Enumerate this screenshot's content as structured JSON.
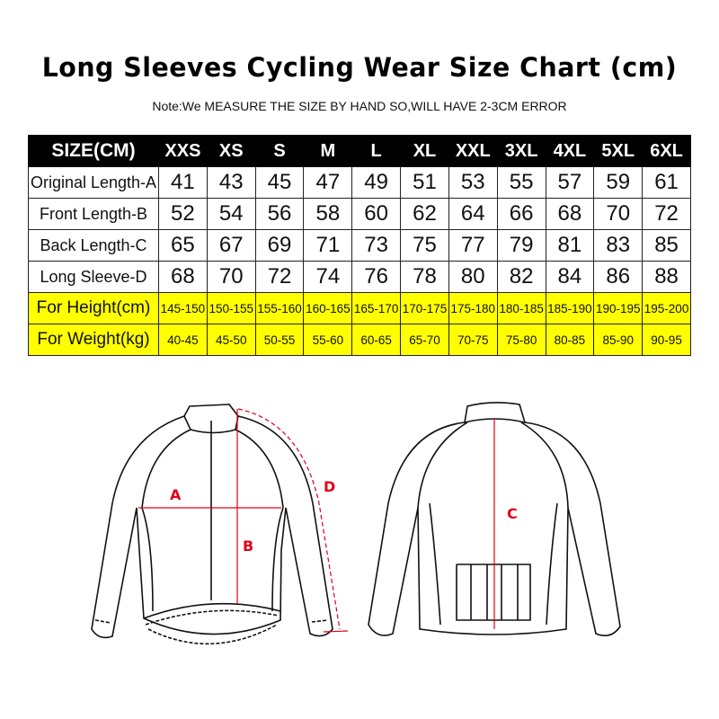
{
  "title": "Long Sleeves Cycling Wear Size Chart (cm)",
  "note": "Note:We MEASURE THE SIZE BY HAND SO,WILL HAVE 2-3CM ERROR",
  "table": {
    "header": [
      "SIZE(CM)",
      "XXS",
      "XS",
      "S",
      "M",
      "L",
      "XL",
      "XXL",
      "3XL",
      "4XL",
      "5XL",
      "6XL"
    ],
    "rows": [
      {
        "label": "Original Length-A",
        "values": [
          "41",
          "43",
          "45",
          "47",
          "49",
          "51",
          "53",
          "55",
          "57",
          "59",
          "61"
        ]
      },
      {
        "label": "Front Length-B",
        "values": [
          "52",
          "54",
          "56",
          "58",
          "60",
          "62",
          "64",
          "66",
          "68",
          "70",
          "72"
        ]
      },
      {
        "label": "Back Length-C",
        "values": [
          "65",
          "67",
          "69",
          "71",
          "73",
          "75",
          "77",
          "79",
          "81",
          "83",
          "85"
        ]
      },
      {
        "label": "Long Sleeve-D",
        "values": [
          "68",
          "70",
          "72",
          "74",
          "76",
          "78",
          "80",
          "82",
          "84",
          "86",
          "88"
        ]
      },
      {
        "label": "For Height(cm)",
        "values": [
          "145-150",
          "150-155",
          "155-160",
          "160-165",
          "165-170",
          "170-175",
          "175-180",
          "180-185",
          "185-190",
          "190-195",
          "195-200"
        ],
        "highlight": true
      },
      {
        "label": "For Weight(kg)",
        "values": [
          "40-45",
          "45-50",
          "50-55",
          "55-60",
          "60-65",
          "65-70",
          "70-75",
          "75-80",
          "80-85",
          "85-90",
          "90-95"
        ],
        "highlight": true
      }
    ]
  },
  "diagram": {
    "labels": {
      "a": "A",
      "b": "B",
      "c": "C",
      "d": "D"
    },
    "measure_color": "#e0001b",
    "highlight_color": "#ffff00"
  }
}
